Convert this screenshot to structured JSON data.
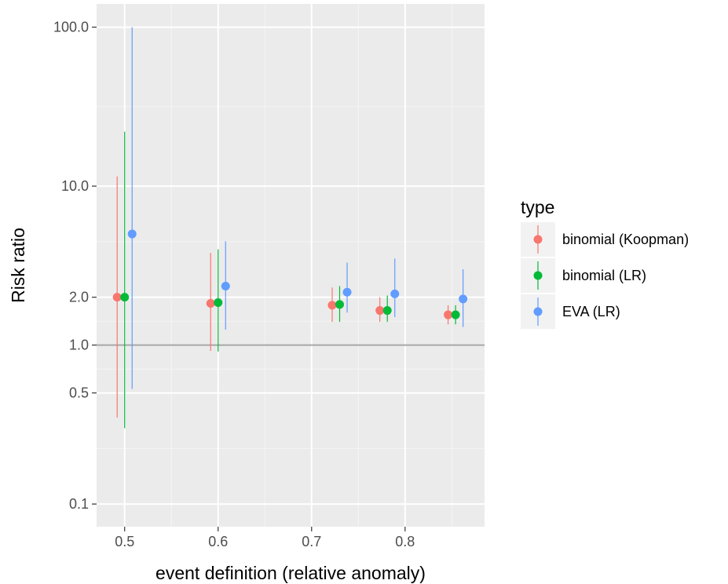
{
  "chart_data": {
    "type": "scatter",
    "title": "",
    "xlabel": "event definition (relative anomaly)",
    "ylabel": "Risk ratio",
    "y_scale": "log",
    "xlim": [
      0.47,
      0.885
    ],
    "ylim": [
      0.072,
      140
    ],
    "x_ticks": [
      0.5,
      0.6,
      0.7,
      0.8
    ],
    "x_tick_labels": [
      "0.5",
      "0.6",
      "0.7",
      "0.8"
    ],
    "y_ticks": [
      0.1,
      0.5,
      1.0,
      2.0,
      10.0,
      100.0
    ],
    "y_tick_labels": [
      "0.1",
      "0.5",
      "1.0",
      "2.0",
      "10.0",
      "100.0"
    ],
    "reference_line": {
      "y": 1.0,
      "color": "#a6a6a6"
    },
    "grid": true,
    "legend": {
      "title": "type",
      "position": "right"
    },
    "series": [
      {
        "name": "binomial (Koopman)",
        "color": "#F8766D",
        "points": [
          {
            "x": 0.492,
            "y": 2.0,
            "lo": 0.35,
            "hi": 11.5
          },
          {
            "x": 0.592,
            "y": 1.83,
            "lo": 0.92,
            "hi": 3.8
          },
          {
            "x": 0.722,
            "y": 1.78,
            "lo": 1.4,
            "hi": 2.3
          },
          {
            "x": 0.773,
            "y": 1.65,
            "lo": 1.4,
            "hi": 2.0
          },
          {
            "x": 0.846,
            "y": 1.55,
            "lo": 1.35,
            "hi": 1.78
          }
        ]
      },
      {
        "name": "binomial (LR)",
        "color": "#00BA38",
        "points": [
          {
            "x": 0.5,
            "y": 2.0,
            "lo": 0.3,
            "hi": 22.0
          },
          {
            "x": 0.6,
            "y": 1.85,
            "lo": 0.91,
            "hi": 4.0
          },
          {
            "x": 0.73,
            "y": 1.8,
            "lo": 1.4,
            "hi": 2.35
          },
          {
            "x": 0.781,
            "y": 1.65,
            "lo": 1.4,
            "hi": 2.05
          },
          {
            "x": 0.854,
            "y": 1.55,
            "lo": 1.35,
            "hi": 1.78
          }
        ]
      },
      {
        "name": "EVA (LR)",
        "color": "#619CFF",
        "points": [
          {
            "x": 0.508,
            "y": 5.0,
            "lo": 0.53,
            "hi": 100.0
          },
          {
            "x": 0.608,
            "y": 2.35,
            "lo": 1.25,
            "hi": 4.5
          },
          {
            "x": 0.738,
            "y": 2.15,
            "lo": 1.6,
            "hi": 3.3
          },
          {
            "x": 0.789,
            "y": 2.1,
            "lo": 1.5,
            "hi": 3.5
          },
          {
            "x": 0.862,
            "y": 1.95,
            "lo": 1.3,
            "hi": 3.0
          }
        ]
      }
    ]
  }
}
